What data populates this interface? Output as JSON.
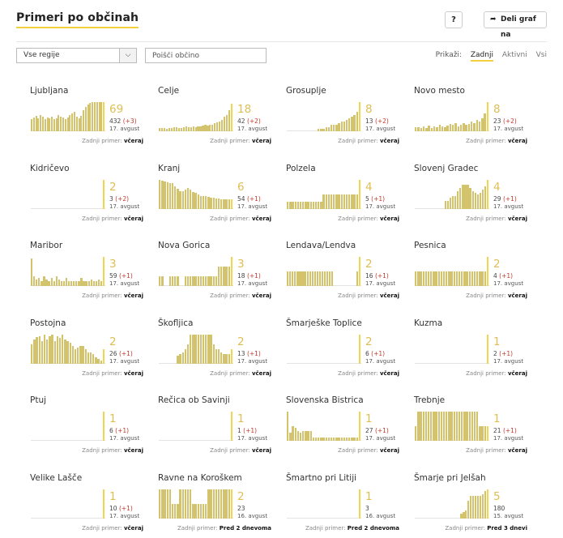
{
  "header": {
    "title": "Primeri po občinah",
    "help_label": "?",
    "share_label": "Deli graf na"
  },
  "controls": {
    "region_value": "Vse regije",
    "search_placeholder": "Poišči občino",
    "show_label": "Prikaži:",
    "options": [
      "Zadnji",
      "Aktivni",
      "Vsi"
    ],
    "selected_option": "Zadnji"
  },
  "colors": {
    "accent": "#f2cf3d",
    "bar": "#d3c36c",
    "bar_last": "#f0d54e",
    "number": "#e0be53",
    "delta": "#c0392b"
  },
  "last_case_label": "Zadnji primer:",
  "municipalities": [
    {
      "name": "Ljubljana",
      "latest": "69",
      "total": "432",
      "delta": "(+3)",
      "date": "17. avgust",
      "last": "včeraj",
      "series": [
        15,
        17,
        19,
        16,
        20,
        18,
        15,
        17,
        16,
        18,
        15,
        16,
        20,
        18,
        17,
        15,
        17,
        20,
        22,
        24,
        18,
        16,
        19,
        26,
        30,
        33,
        35,
        38,
        40,
        44,
        46,
        50,
        42
      ]
    },
    {
      "name": "Celje",
      "latest": "18",
      "total": "42",
      "delta": "(+2)",
      "date": "17. avgust",
      "last": "včeraj",
      "series": [
        4,
        4,
        4,
        3,
        4,
        4,
        5,
        5,
        4,
        4,
        5,
        6,
        5,
        5,
        6,
        5,
        6,
        6,
        7,
        8,
        7,
        8,
        8,
        10,
        11,
        12,
        14,
        18,
        20,
        26,
        34
      ]
    },
    {
      "name": "Grosuplje",
      "latest": "8",
      "total": "13",
      "delta": "(+2)",
      "date": "17. avgust",
      "last": "včeraj",
      "series": [
        0,
        0,
        0,
        0,
        0,
        0,
        0,
        0,
        0,
        0,
        0,
        0,
        3,
        3,
        3,
        5,
        5,
        8,
        8,
        8,
        10,
        12,
        12,
        14,
        16,
        18,
        20,
        24,
        36
      ]
    },
    {
      "name": "Novo mesto",
      "latest": "8",
      "total": "23",
      "delta": "(+2)",
      "date": "17. avgust",
      "last": "včeraj",
      "series": [
        5,
        5,
        4,
        6,
        4,
        7,
        4,
        6,
        5,
        8,
        6,
        5,
        7,
        9,
        8,
        10,
        6,
        8,
        10,
        8,
        9,
        12,
        10,
        14,
        12,
        16,
        22,
        36
      ]
    },
    {
      "name": "Kidričevo",
      "latest": "2",
      "total": "3",
      "delta": "(+2)",
      "date": "17. avgust",
      "last": "včeraj",
      "series": [
        0,
        0,
        0,
        0,
        0,
        0,
        0,
        0,
        0,
        0,
        0,
        0,
        0,
        0,
        0,
        0,
        0,
        0,
        0,
        0,
        0,
        0,
        0,
        0,
        0,
        0,
        0,
        0,
        36
      ]
    },
    {
      "name": "Kranj",
      "latest": "6",
      "total": "54",
      "delta": "(+1)",
      "date": "17. avgust",
      "last": "včeraj",
      "series": [
        36,
        35,
        34,
        33,
        32,
        32,
        28,
        25,
        22,
        22,
        24,
        26,
        24,
        21,
        20,
        18,
        16,
        16,
        16,
        15,
        14,
        14,
        13,
        13,
        12,
        12,
        12,
        12,
        12
      ]
    },
    {
      "name": "Polzela",
      "latest": "4",
      "total": "5",
      "delta": "(+1)",
      "date": "17. avgust",
      "last": "včeraj",
      "series": [
        9,
        9,
        9,
        9,
        9,
        9,
        9,
        9,
        9,
        9,
        9,
        9,
        9,
        9,
        18,
        18,
        18,
        18,
        18,
        18,
        18,
        18,
        18,
        18,
        18,
        18,
        18,
        18,
        36
      ]
    },
    {
      "name": "Slovenj Gradec",
      "latest": "4",
      "total": "29",
      "delta": "(+1)",
      "date": "17. avgust",
      "last": "včeraj",
      "series": [
        0,
        0,
        0,
        0,
        0,
        0,
        0,
        0,
        0,
        0,
        0,
        0,
        10,
        10,
        14,
        16,
        16,
        22,
        26,
        30,
        30,
        30,
        26,
        22,
        20,
        18,
        20,
        24,
        28,
        36
      ]
    },
    {
      "name": "Maribor",
      "latest": "3",
      "total": "59",
      "delta": "(+1)",
      "date": "17. avgust",
      "last": "včeraj",
      "series": [
        34,
        12,
        8,
        10,
        6,
        12,
        8,
        6,
        10,
        6,
        12,
        8,
        6,
        6,
        10,
        6,
        6,
        6,
        6,
        6,
        10,
        6,
        6,
        6,
        8,
        6,
        6,
        8,
        6,
        36
      ]
    },
    {
      "name": "Nova Gorica",
      "latest": "3",
      "total": "18",
      "delta": "(+1)",
      "date": "17. avgust",
      "last": "včeraj",
      "series": [
        12,
        12,
        0,
        0,
        12,
        12,
        12,
        12,
        0,
        0,
        12,
        12,
        12,
        12,
        12,
        12,
        12,
        12,
        12,
        12,
        12,
        12,
        12,
        24,
        24,
        24,
        24,
        24,
        36
      ]
    },
    {
      "name": "Lendava/Lendva",
      "latest": "2",
      "total": "16",
      "delta": "(+1)",
      "date": "17. avgust",
      "last": "včeraj",
      "series": [
        18,
        18,
        18,
        18,
        18,
        18,
        18,
        18,
        18,
        18,
        18,
        18,
        18,
        18,
        18,
        18,
        18,
        18,
        18,
        0,
        0,
        0,
        0,
        0,
        0,
        0,
        0,
        0,
        18,
        36
      ]
    },
    {
      "name": "Pesnica",
      "latest": "2",
      "total": "4",
      "delta": "(+1)",
      "date": "17. avgust",
      "last": "včeraj",
      "series": [
        18,
        18,
        18,
        18,
        18,
        18,
        18,
        18,
        18,
        18,
        18,
        18,
        18,
        18,
        18,
        18,
        18,
        18,
        18,
        18,
        18,
        18,
        18,
        18,
        18,
        18,
        18,
        18,
        36
      ]
    },
    {
      "name": "Postojna",
      "latest": "2",
      "total": "26",
      "delta": "(+1)",
      "date": "17. avgust",
      "last": "včeraj",
      "series": [
        24,
        30,
        33,
        34,
        28,
        36,
        30,
        34,
        36,
        28,
        34,
        32,
        36,
        30,
        28,
        26,
        22,
        18,
        20,
        22,
        22,
        18,
        14,
        14,
        12,
        8,
        6,
        4,
        18
      ]
    },
    {
      "name": "Škofljica",
      "latest": "2",
      "total": "13",
      "delta": "(+1)",
      "date": "17. avgust",
      "last": "včeraj",
      "series": [
        0,
        0,
        0,
        0,
        0,
        0,
        0,
        10,
        12,
        14,
        18,
        24,
        36,
        36,
        36,
        36,
        36,
        36,
        36,
        36,
        36,
        24,
        18,
        18,
        14,
        12,
        12,
        12,
        18
      ]
    },
    {
      "name": "Šmarješke Toplice",
      "latest": "2",
      "total": "6",
      "delta": "(+1)",
      "date": "17. avgust",
      "last": "včeraj",
      "series": [
        0,
        0,
        0,
        0,
        0,
        0,
        0,
        0,
        0,
        0,
        0,
        0,
        0,
        0,
        0,
        0,
        0,
        0,
        0,
        0,
        0,
        0,
        0,
        0,
        0,
        0,
        0,
        0,
        36
      ]
    },
    {
      "name": "Kuzma",
      "latest": "1",
      "total": "2",
      "delta": "(+1)",
      "date": "17. avgust",
      "last": "včeraj",
      "series": [
        0,
        0,
        0,
        0,
        0,
        0,
        0,
        0,
        0,
        0,
        0,
        0,
        0,
        0,
        0,
        0,
        0,
        0,
        0,
        0,
        0,
        0,
        0,
        0,
        0,
        0,
        0,
        0,
        36
      ]
    },
    {
      "name": "Ptuj",
      "latest": "1",
      "total": "6",
      "delta": "(+1)",
      "date": "17. avgust",
      "last": "včeraj",
      "series": [
        0,
        0,
        0,
        0,
        0,
        0,
        0,
        0,
        0,
        0,
        0,
        0,
        0,
        0,
        0,
        0,
        0,
        0,
        0,
        0,
        0,
        0,
        0,
        0,
        0,
        0,
        0,
        0,
        36
      ]
    },
    {
      "name": "Rečica ob Savinji",
      "latest": "1",
      "total": "1",
      "delta": "(+1)",
      "date": "17. avgust",
      "last": "včeraj",
      "series": [
        0,
        0,
        0,
        0,
        0,
        0,
        0,
        0,
        0,
        0,
        0,
        0,
        0,
        0,
        0,
        0,
        0,
        0,
        0,
        0,
        0,
        0,
        0,
        0,
        0,
        0,
        0,
        0,
        36
      ]
    },
    {
      "name": "Slovenska Bistrica",
      "latest": "1",
      "total": "27",
      "delta": "(+1)",
      "date": "17. avgust",
      "last": "včeraj",
      "series": [
        36,
        10,
        18,
        16,
        12,
        10,
        12,
        12,
        12,
        12,
        4,
        4,
        4,
        4,
        4,
        4,
        4,
        4,
        4,
        4,
        4,
        4,
        4,
        4,
        4,
        4,
        4,
        4,
        36
      ]
    },
    {
      "name": "Trebnje",
      "latest": "1",
      "total": "21",
      "delta": "(+1)",
      "date": "17. avgust",
      "last": "včeraj",
      "series": [
        18,
        36,
        36,
        36,
        36,
        36,
        36,
        36,
        36,
        36,
        36,
        36,
        36,
        36,
        36,
        36,
        36,
        36,
        36,
        36,
        36,
        36,
        36,
        36,
        36,
        18,
        18,
        18,
        18
      ]
    },
    {
      "name": "Velike Lašče",
      "latest": "1",
      "total": "10",
      "delta": "(+1)",
      "date": "17. avgust",
      "last": "včeraj",
      "series": [
        0,
        0,
        0,
        0,
        0,
        0,
        0,
        0,
        0,
        0,
        0,
        0,
        0,
        0,
        0,
        0,
        0,
        0,
        0,
        0,
        0,
        0,
        0,
        0,
        0,
        0,
        0,
        0,
        36
      ]
    },
    {
      "name": "Ravne na Koroškem",
      "latest": "2",
      "total": "23",
      "delta": "",
      "date": "16. avgust",
      "last": "Pred 2 dnevoma",
      "series": [
        36,
        36,
        36,
        36,
        36,
        18,
        18,
        18,
        36,
        36,
        36,
        36,
        36,
        18,
        18,
        18,
        18,
        18,
        18,
        36,
        36,
        36,
        36,
        36,
        36,
        36,
        36,
        36,
        36
      ]
    },
    {
      "name": "Šmartno pri Litiji",
      "latest": "1",
      "total": "3",
      "delta": "",
      "date": "16. avgust",
      "last": "Pred 2 dnevoma",
      "series": [
        0,
        0,
        0,
        0,
        0,
        0,
        0,
        0,
        0,
        0,
        0,
        0,
        0,
        0,
        0,
        0,
        0,
        0,
        0,
        0,
        0,
        0,
        0,
        0,
        0,
        0,
        0,
        0,
        36
      ]
    },
    {
      "name": "Šmarje pri Jelšah",
      "latest": "5",
      "total": "180",
      "delta": "",
      "date": "15. avgust",
      "last": "Pred 3 dnevi",
      "series": [
        0,
        0,
        0,
        0,
        0,
        0,
        0,
        0,
        0,
        0,
        0,
        0,
        0,
        0,
        0,
        0,
        0,
        0,
        0,
        6,
        8,
        10,
        22,
        28,
        28,
        28,
        28,
        28,
        30,
        34,
        36
      ]
    }
  ]
}
